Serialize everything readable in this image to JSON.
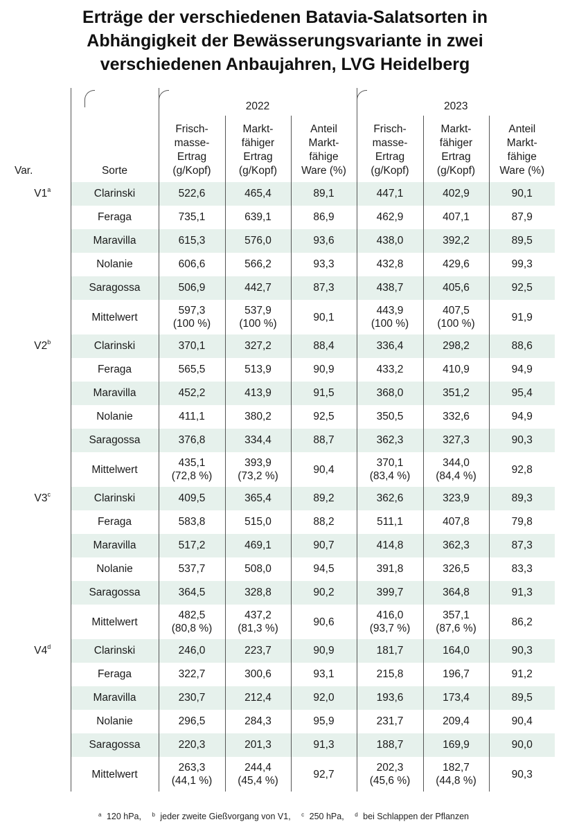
{
  "title": {
    "line1": "Erträge der verschiedenen Batavia-Salatsorten in",
    "line2": "Abhängigkeit der Bewässerungsvariante in zwei",
    "line3": "verschiedenen Anbaujahren, LVG Heidelberg"
  },
  "header": {
    "year1": "2022",
    "year2": "2023",
    "var": "Var.",
    "sorte": "Sorte",
    "col_frisch": [
      "Frisch-",
      "masse-",
      "Ertrag",
      "(g/Kopf)"
    ],
    "col_markt": [
      "Markt-",
      "fähiger",
      "Ertrag",
      "(g/Kopf)"
    ],
    "col_anteil": [
      "Anteil",
      "Markt-",
      "fähige",
      "Ware (%)"
    ]
  },
  "groups": [
    {
      "var": "V1",
      "sup": "a",
      "rows": [
        {
          "sorte": "Clarinski",
          "f22": "522,6",
          "m22": "465,4",
          "a22": "89,1",
          "f23": "447,1",
          "m23": "402,9",
          "a23": "90,1"
        },
        {
          "sorte": "Feraga",
          "f22": "735,1",
          "m22": "639,1",
          "a22": "86,9",
          "f23": "462,9",
          "m23": "407,1",
          "a23": "87,9"
        },
        {
          "sorte": "Maravilla",
          "f22": "615,3",
          "m22": "576,0",
          "a22": "93,6",
          "f23": "438,0",
          "m23": "392,2",
          "a23": "89,5"
        },
        {
          "sorte": "Nolanie",
          "f22": "606,6",
          "m22": "566,2",
          "a22": "93,3",
          "f23": "432,8",
          "m23": "429,6",
          "a23": "99,3"
        },
        {
          "sorte": "Saragossa",
          "f22": "506,9",
          "m22": "442,7",
          "a22": "87,3",
          "f23": "438,7",
          "m23": "405,6",
          "a23": "92,5"
        }
      ],
      "mean": {
        "sorte": "Mittelwert",
        "f22": "597,3",
        "f22p": "(100 %)",
        "m22": "537,9",
        "m22p": "(100 %)",
        "a22": "90,1",
        "f23": "443,9",
        "f23p": "(100 %)",
        "m23": "407,5",
        "m23p": "(100 %)",
        "a23": "91,9"
      }
    },
    {
      "var": "V2",
      "sup": "b",
      "rows": [
        {
          "sorte": "Clarinski",
          "f22": "370,1",
          "m22": "327,2",
          "a22": "88,4",
          "f23": "336,4",
          "m23": "298,2",
          "a23": "88,6"
        },
        {
          "sorte": "Feraga",
          "f22": "565,5",
          "m22": "513,9",
          "a22": "90,9",
          "f23": "433,2",
          "m23": "410,9",
          "a23": "94,9"
        },
        {
          "sorte": "Maravilla",
          "f22": "452,2",
          "m22": "413,9",
          "a22": "91,5",
          "f23": "368,0",
          "m23": "351,2",
          "a23": "95,4"
        },
        {
          "sorte": "Nolanie",
          "f22": "411,1",
          "m22": "380,2",
          "a22": "92,5",
          "f23": "350,5",
          "m23": "332,6",
          "a23": "94,9"
        },
        {
          "sorte": "Saragossa",
          "f22": "376,8",
          "m22": "334,4",
          "a22": "88,7",
          "f23": "362,3",
          "m23": "327,3",
          "a23": "90,3"
        }
      ],
      "mean": {
        "sorte": "Mittelwert",
        "f22": "435,1",
        "f22p": "(72,8 %)",
        "m22": "393,9",
        "m22p": "(73,2 %)",
        "a22": "90,4",
        "f23": "370,1",
        "f23p": "(83,4 %)",
        "m23": "344,0",
        "m23p": "(84,4 %)",
        "a23": "92,8"
      }
    },
    {
      "var": "V3",
      "sup": "c",
      "rows": [
        {
          "sorte": "Clarinski",
          "f22": "409,5",
          "m22": "365,4",
          "a22": "89,2",
          "f23": "362,6",
          "m23": "323,9",
          "a23": "89,3"
        },
        {
          "sorte": "Feraga",
          "f22": "583,8",
          "m22": "515,0",
          "a22": "88,2",
          "f23": "511,1",
          "m23": "407,8",
          "a23": "79,8"
        },
        {
          "sorte": "Maravilla",
          "f22": "517,2",
          "m22": "469,1",
          "a22": "90,7",
          "f23": "414,8",
          "m23": "362,3",
          "a23": "87,3"
        },
        {
          "sorte": "Nolanie",
          "f22": "537,7",
          "m22": "508,0",
          "a22": "94,5",
          "f23": "391,8",
          "m23": "326,5",
          "a23": "83,3"
        },
        {
          "sorte": "Saragossa",
          "f22": "364,5",
          "m22": "328,8",
          "a22": "90,2",
          "f23": "399,7",
          "m23": "364,8",
          "a23": "91,3"
        }
      ],
      "mean": {
        "sorte": "Mittelwert",
        "f22": "482,5",
        "f22p": "(80,8 %)",
        "m22": "437,2",
        "m22p": "(81,3 %)",
        "a22": "90,6",
        "f23": "416,0",
        "f23p": "(93,7 %)",
        "m23": "357,1",
        "m23p": "(87,6 %)",
        "a23": "86,2"
      }
    },
    {
      "var": "V4",
      "sup": "d",
      "rows": [
        {
          "sorte": "Clarinski",
          "f22": "246,0",
          "m22": "223,7",
          "a22": "90,9",
          "f23": "181,7",
          "m23": "164,0",
          "a23": "90,3"
        },
        {
          "sorte": "Feraga",
          "f22": "322,7",
          "m22": "300,6",
          "a22": "93,1",
          "f23": "215,8",
          "m23": "196,7",
          "a23": "91,2"
        },
        {
          "sorte": "Maravilla",
          "f22": "230,7",
          "m22": "212,4",
          "a22": "92,0",
          "f23": "193,6",
          "m23": "173,4",
          "a23": "89,5"
        },
        {
          "sorte": "Nolanie",
          "f22": "296,5",
          "m22": "284,3",
          "a22": "95,9",
          "f23": "231,7",
          "m23": "209,4",
          "a23": "90,4"
        },
        {
          "sorte": "Saragossa",
          "f22": "220,3",
          "m22": "201,3",
          "a22": "91,3",
          "f23": "188,7",
          "m23": "169,9",
          "a23": "90,0"
        }
      ],
      "mean": {
        "sorte": "Mittelwert",
        "f22": "263,3",
        "f22p": "(44,1 %)",
        "m22": "244,4",
        "m22p": "(45,4 %)",
        "a22": "92,7",
        "f23": "202,3",
        "f23p": "(45,6 %)",
        "m23": "182,7",
        "m23p": "(44,8 %)",
        "a23": "90,3"
      }
    }
  ],
  "footnotes": [
    {
      "sup": "a",
      "text": "120 hPa,"
    },
    {
      "sup": "b",
      "text": "jeder zweite Gießvorgang von V1,"
    },
    {
      "sup": "c",
      "text": "250 hPa,"
    },
    {
      "sup": "d",
      "text": "bei Schlappen der Pflanzen"
    }
  ],
  "colors": {
    "row_shade": "#e6f1ec",
    "rule": "#555555"
  }
}
